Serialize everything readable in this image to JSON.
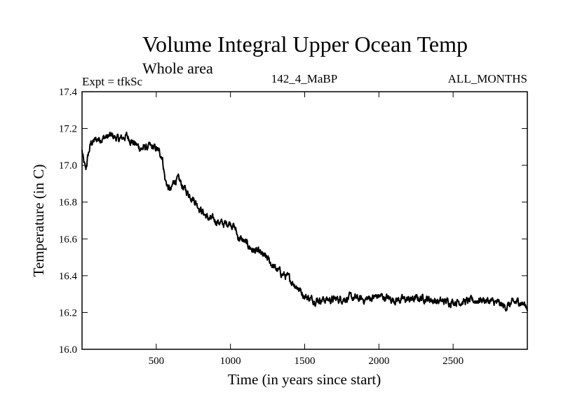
{
  "chart_data": {
    "type": "line",
    "title": "Volume Integral Upper Ocean Temp",
    "subtitle": "Whole area",
    "expt_label": "Expt = tfkSc",
    "run_label": "142_4_MaBP",
    "months_label": "ALL_MONTHS",
    "xlabel": "Time (in years since start)",
    "ylabel": "Temperature (in C)",
    "xlim": [
      0,
      3000
    ],
    "ylim": [
      16.0,
      17.4
    ],
    "x_ticks": [
      500,
      1000,
      1500,
      2000,
      2500
    ],
    "x_tick_labels": [
      "500",
      "1000",
      "1500",
      "2000",
      "2500"
    ],
    "y_ticks": [
      16.0,
      16.2,
      16.4,
      16.6,
      16.8,
      17.0,
      17.2,
      17.4
    ],
    "y_tick_labels": [
      "16.0",
      "16.2",
      "16.4",
      "16.6",
      "16.8",
      "17.0",
      "17.2",
      "17.4"
    ],
    "grid": false,
    "series": [
      {
        "name": "Volume integral upper ocean temperature",
        "x": [
          0,
          10,
          25,
          40,
          60,
          100,
          150,
          200,
          250,
          300,
          350,
          400,
          450,
          500,
          540,
          560,
          580,
          600,
          620,
          650,
          700,
          750,
          800,
          850,
          900,
          950,
          1000,
          1030,
          1050,
          1100,
          1150,
          1200,
          1250,
          1300,
          1350,
          1400,
          1450,
          1500,
          1550,
          1600,
          1700,
          1800,
          1900,
          2000,
          2100,
          2200,
          2300,
          2400,
          2500,
          2600,
          2700,
          2800,
          2850,
          2900,
          2950,
          3000
        ],
        "values": [
          17.08,
          17.02,
          16.97,
          17.05,
          17.12,
          17.14,
          17.15,
          17.16,
          17.14,
          17.16,
          17.12,
          17.09,
          17.1,
          17.09,
          17.05,
          16.92,
          16.88,
          16.86,
          16.92,
          16.92,
          16.86,
          16.82,
          16.76,
          16.71,
          16.7,
          16.68,
          16.69,
          16.66,
          16.61,
          16.58,
          16.54,
          16.52,
          16.49,
          16.44,
          16.41,
          16.38,
          16.34,
          16.29,
          16.27,
          16.27,
          16.27,
          16.28,
          16.27,
          16.29,
          16.27,
          16.27,
          16.28,
          16.26,
          16.26,
          16.26,
          16.27,
          16.25,
          16.23,
          16.25,
          16.26,
          16.23
        ]
      }
    ]
  }
}
